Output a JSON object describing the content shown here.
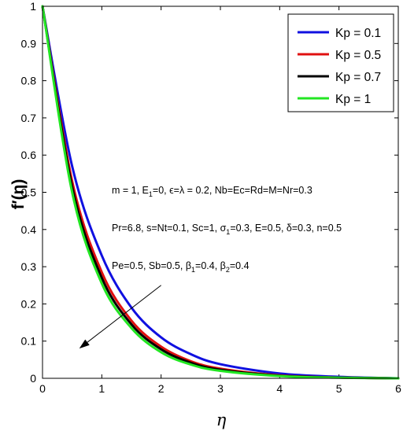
{
  "chart_data": {
    "type": "line",
    "xlabel": "η",
    "ylabel": "f′(η)",
    "xlim": [
      0,
      6
    ],
    "ylim": [
      0,
      1
    ],
    "xticks": [
      "0",
      "1",
      "2",
      "3",
      "4",
      "5",
      "6"
    ],
    "yticks": [
      "0",
      "0.1",
      "0.2",
      "0.3",
      "0.4",
      "0.5",
      "0.6",
      "0.7",
      "0.8",
      "0.9",
      "1"
    ],
    "grid": false,
    "legend_position": "top-right",
    "series": [
      {
        "name": "Kp = 0.1",
        "color": "#1010e0",
        "x": [
          0,
          0.5,
          1,
          1.5,
          2,
          2.5,
          3,
          4,
          5,
          6
        ],
        "y": [
          1,
          0.57,
          0.33,
          0.19,
          0.11,
          0.065,
          0.038,
          0.013,
          0.004,
          0
        ]
      },
      {
        "name": "Kp = 0.5",
        "color": "#e01010",
        "x": [
          0,
          0.5,
          1,
          1.5,
          2,
          2.5,
          3,
          4,
          5,
          6
        ],
        "y": [
          1,
          0.53,
          0.285,
          0.155,
          0.085,
          0.046,
          0.026,
          0.008,
          0.002,
          0
        ]
      },
      {
        "name": "Kp = 0.7",
        "color": "#000000",
        "x": [
          0,
          0.5,
          1,
          1.5,
          2,
          2.5,
          3,
          4,
          5,
          6
        ],
        "y": [
          1,
          0.515,
          0.27,
          0.145,
          0.078,
          0.042,
          0.023,
          0.007,
          0.002,
          0
        ]
      },
      {
        "name": "Kp = 1",
        "color": "#22e622",
        "x": [
          0,
          0.5,
          1,
          1.5,
          2,
          2.5,
          3,
          4,
          5,
          6
        ],
        "y": [
          1,
          0.5,
          0.255,
          0.135,
          0.07,
          0.037,
          0.02,
          0.006,
          0.0015,
          0
        ]
      }
    ],
    "annotations": [
      "m = 1, E",
      "=0, ϵ=λ = 0.2, Nb=Ec=Rd=M=Nr=0.3",
      "Pr=6.8, s=Nt=0.1, Sc=1, σ",
      "=0.3, E=0.5, δ=0.3, n=0.5",
      "Pe=0.5, Sb=0.5, β",
      "=0.4, β",
      "=0.4",
      "1"
    ],
    "arrow": {
      "from": [
        2.0,
        0.25
      ],
      "to": [
        0.62,
        0.08
      ]
    }
  }
}
